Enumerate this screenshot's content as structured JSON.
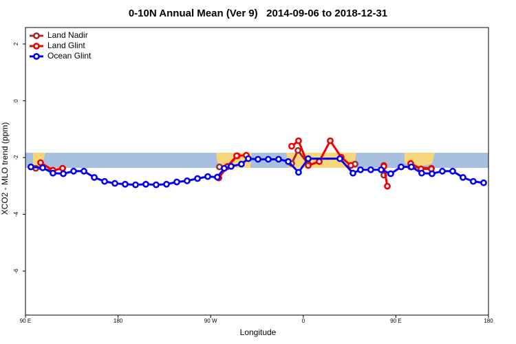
{
  "chart_data": {
    "type": "line",
    "title": "0-10N Annual Mean (Ver 9)   2014-09-06 to 2018-12-31",
    "xlabel": "Longitude",
    "ylabel": "XCO2 - MLO trend (ppm)",
    "xlim": [
      90,
      540
    ],
    "ylim": [
      -7.55,
      2.58
    ],
    "xticks": [
      {
        "value": 90,
        "label": "90 E"
      },
      180,
      {
        "value": 270,
        "label": "90 W"
      },
      {
        "value": 360,
        "label": "0"
      },
      {
        "value": 450,
        "label": "90 E"
      },
      {
        "value": 540,
        "label": "180"
      }
    ],
    "yticks": [
      -6,
      -4,
      -2,
      0,
      2
    ],
    "legend": "top-left",
    "series": [
      {
        "name": "Land Nadir",
        "color": "#a52a2a",
        "x": [
          100.0,
          116.7,
          126.1,
          null,
          278.5,
          286.6,
          295.9,
          null,
          348.7,
          354.8,
          364.8,
          null,
          410.3,
          null,
          438.3,
          438.3,
          null,
          464.4,
          484.5
        ],
        "values": [
          -2.38,
          -2.45,
          -2.38,
          null,
          -2.33,
          -2.31,
          -1.94,
          null,
          -2.21,
          -1.75,
          -2.23,
          null,
          -2.23,
          null,
          -2.28,
          -2.62,
          null,
          -2.33,
          -2.38
        ]
      },
      {
        "name": "Land Glint",
        "color": "#ee0000",
        "x": [
          104.7,
          116.7,
          126.1,
          null,
          277.9,
          285.9,
          295.3,
          304.6,
          null,
          348.7,
          355.4,
          364.8,
          375.5,
          386.2,
          396.9,
          406.2,
          null,
          438.3,
          441.7,
          null,
          464.4,
          474.4,
          484.5
        ],
        "values": [
          -2.18,
          -2.45,
          -2.38,
          null,
          -2.72,
          -2.33,
          -1.94,
          -1.92,
          null,
          -1.6,
          -1.41,
          -2.28,
          -2.14,
          -1.41,
          -1.99,
          -2.28,
          null,
          -2.31,
          -3.01,
          null,
          -2.21,
          -2.4,
          -2.4
        ]
      },
      {
        "name": "Ocean Glint",
        "color": "#0000ee",
        "x": [
          95.3,
          106.7,
          116.7,
          126.8,
          136.8,
          146.8,
          156.9,
          166.9,
          176.9,
          186.9,
          197.0,
          207.0,
          217.0,
          227.1,
          237.1,
          247.1,
          257.2,
          267.2,
          276.5,
          283.2,
          289.9,
          299.9,
          306.6,
          316.0,
          326.0,
          336.0,
          345.4,
          355.4,
          364.8,
          395.6,
          408.3,
          415.6,
          425.6,
          435.7,
          445.0,
          455.1,
          465.1,
          475.1,
          485.1,
          495.2,
          505.2,
          515.2,
          525.2,
          535.3
        ],
        "values": [
          -2.33,
          -2.36,
          -2.55,
          -2.57,
          -2.48,
          -2.48,
          -2.7,
          -2.84,
          -2.91,
          -2.94,
          -2.96,
          -2.94,
          -2.96,
          -2.94,
          -2.86,
          -2.82,
          -2.74,
          -2.67,
          -2.69,
          -2.38,
          -2.31,
          -2.23,
          -2.04,
          -2.06,
          -2.06,
          -2.06,
          -2.14,
          -2.52,
          -2.04,
          -2.04,
          -2.55,
          -2.43,
          -2.43,
          -2.43,
          -2.57,
          -2.33,
          -2.33,
          -2.55,
          -2.57,
          -2.48,
          -2.48,
          -2.7,
          -2.84,
          -2.89
        ]
      }
    ]
  }
}
